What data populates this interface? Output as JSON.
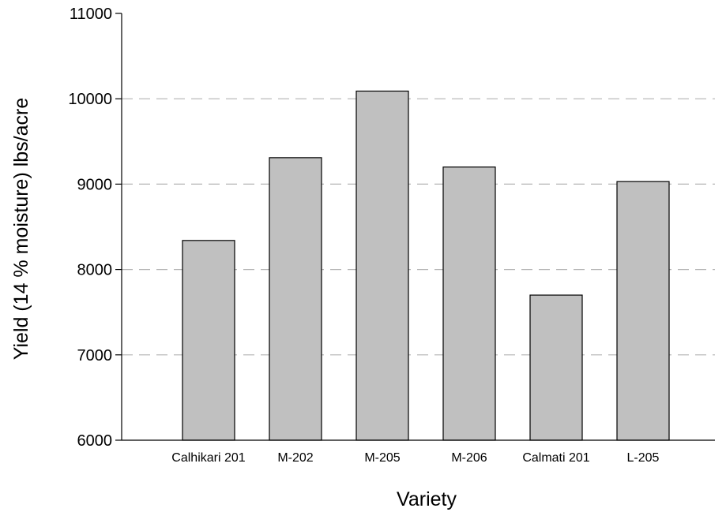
{
  "chart_data": {
    "type": "bar",
    "categories": [
      "Calhikari 201",
      "M-202",
      "M-205",
      "M-206",
      "Calmati 201",
      "L-205"
    ],
    "values": [
      8340,
      9310,
      10090,
      9200,
      7700,
      9030
    ],
    "xlabel": "Variety",
    "ylabel": "Yield (14 % moisture) lbs/acre",
    "ylim": [
      6000,
      11000
    ],
    "yticks": [
      6000,
      7000,
      8000,
      9000,
      10000,
      11000
    ],
    "grid": "horizontal dashed at 7000, 8000, 9000, 10000",
    "colors": {
      "bar_fill": "#c0c0c0",
      "bar_stroke": "#000000",
      "grid": "#b4b4b4"
    }
  }
}
